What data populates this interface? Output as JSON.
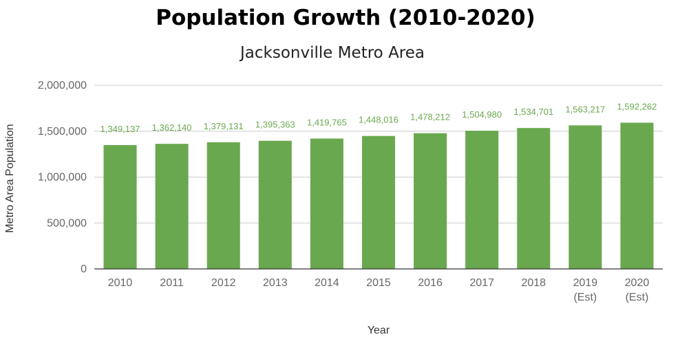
{
  "chart_data": {
    "type": "bar",
    "title": "Population Growth (2010-2020)",
    "subtitle": "Jacksonville Metro Area",
    "xlabel": "Year",
    "ylabel": "Metro Area Population",
    "categories": [
      [
        "2010"
      ],
      [
        "2011"
      ],
      [
        "2012"
      ],
      [
        "2013"
      ],
      [
        "2014"
      ],
      [
        "2015"
      ],
      [
        "2016"
      ],
      [
        "2017"
      ],
      [
        "2018"
      ],
      [
        "2019",
        "(Est)"
      ],
      [
        "2020",
        "(Est)"
      ]
    ],
    "values": [
      1349137,
      1362140,
      1379131,
      1395363,
      1419765,
      1448016,
      1478212,
      1504980,
      1534701,
      1563217,
      1592262
    ],
    "data_labels": [
      "1,349,137",
      "1,362,140",
      "1,379,131",
      "1,395,363",
      "1,419,765",
      "1,448,016",
      "1,478,212",
      "1,504,980",
      "1,534,701",
      "1,563,217",
      "1,592,262"
    ],
    "yticks": [
      0,
      500000,
      1000000,
      1500000,
      2000000
    ],
    "ytick_labels": [
      "0",
      "500,000",
      "1,000,000",
      "1,500,000",
      "2,000,000"
    ],
    "ylim": [
      0,
      2000000
    ],
    "grid": true,
    "legend": "none",
    "colors": {
      "bar": "#6aa84f",
      "data_label": "#6aa84f",
      "grid": "#cccccc",
      "axis": "#333333"
    }
  }
}
